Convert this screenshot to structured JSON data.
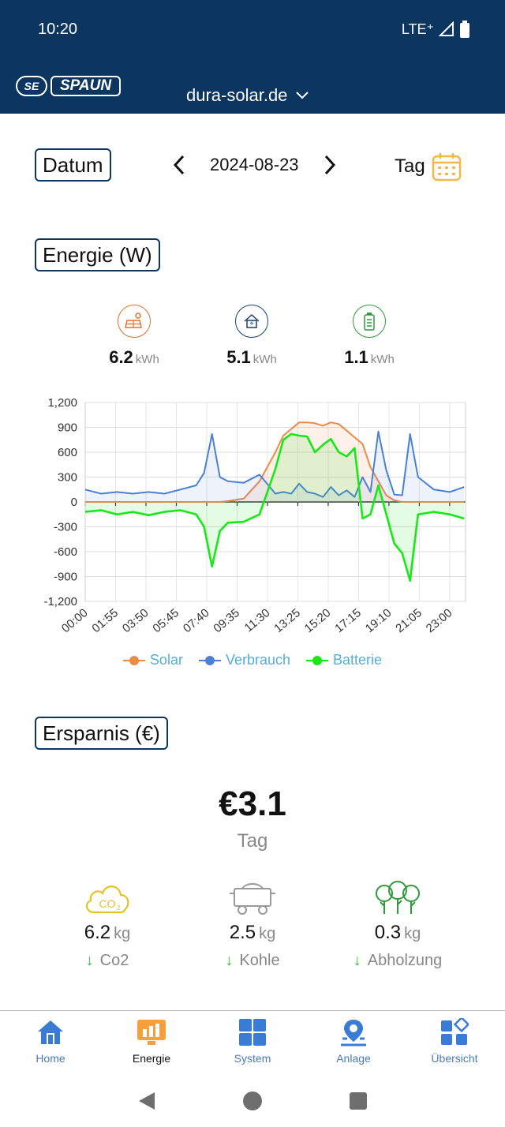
{
  "status_bar": {
    "time": "10:20",
    "network": "LTE⁺"
  },
  "header": {
    "logo_mark": "SE",
    "logo_text": "SPAUN",
    "site": "dura-solar.de"
  },
  "date_section": {
    "label": "Datum",
    "date": "2024-08-23",
    "period": "Tag"
  },
  "energy_section": {
    "label": "Energie (W)",
    "stats": [
      {
        "icon": "solar-panel-icon",
        "value": "6.2",
        "unit": "kWh",
        "color": "#e0722e"
      },
      {
        "icon": "house-consumption-icon",
        "value": "5.1",
        "unit": "kWh",
        "color": "#1d3f6b"
      },
      {
        "icon": "battery-icon",
        "value": "1.1",
        "unit": "kWh",
        "color": "#2e9a3a"
      }
    ]
  },
  "chart_data": {
    "type": "line",
    "x": [
      "00:00",
      "01:00",
      "02:00",
      "03:00",
      "04:00",
      "05:00",
      "06:00",
      "07:00",
      "07:30",
      "08:00",
      "08:30",
      "09:00",
      "10:00",
      "11:00",
      "12:00",
      "12:30",
      "13:00",
      "13:30",
      "14:00",
      "14:30",
      "15:00",
      "15:30",
      "16:00",
      "16:30",
      "17:00",
      "17:30",
      "18:00",
      "18:30",
      "19:00",
      "19:30",
      "20:00",
      "20:30",
      "21:00",
      "22:00",
      "23:00",
      "23:55"
    ],
    "series": [
      {
        "name": "Solar",
        "color": "#ee8a48",
        "fill": "rgba(238,138,72,0.12)",
        "values": [
          0,
          0,
          0,
          0,
          0,
          0,
          0,
          0,
          0,
          0,
          0,
          10,
          40,
          250,
          600,
          800,
          880,
          960,
          960,
          950,
          920,
          960,
          940,
          860,
          780,
          700,
          420,
          250,
          80,
          20,
          0,
          0,
          0,
          0,
          0,
          0
        ]
      },
      {
        "name": "Verbrauch",
        "color": "#4a80d8",
        "fill": "rgba(74,128,216,0.10)",
        "values": [
          150,
          100,
          120,
          100,
          120,
          100,
          150,
          200,
          350,
          820,
          300,
          250,
          230,
          330,
          100,
          120,
          100,
          220,
          120,
          100,
          60,
          180,
          80,
          140,
          60,
          300,
          120,
          850,
          380,
          90,
          80,
          820,
          300,
          150,
          120,
          180
        ]
      },
      {
        "name": "Batterie",
        "color": "#18e818",
        "fill": "rgba(24,232,24,0.12)",
        "values": [
          -120,
          -100,
          -150,
          -120,
          -160,
          -120,
          -100,
          -150,
          -300,
          -780,
          -350,
          -250,
          -240,
          -150,
          400,
          750,
          820,
          800,
          790,
          600,
          690,
          760,
          600,
          550,
          650,
          -200,
          -150,
          200,
          -150,
          -500,
          -620,
          -950,
          -150,
          -120,
          -150,
          -200
        ]
      }
    ],
    "ylim": [
      -1200,
      1200
    ],
    "yticks": [
      "1,200",
      "900",
      "600",
      "300",
      "0",
      "-300",
      "-600",
      "-900",
      "-1,200"
    ],
    "xticks": [
      "00:00",
      "01:55",
      "03:50",
      "05:45",
      "07:40",
      "09:35",
      "11:30",
      "13:25",
      "15:20",
      "17:15",
      "19:10",
      "21:05",
      "23:00"
    ],
    "grid": true,
    "legend": "bottom"
  },
  "savings_section": {
    "label": "Ersparnis (€)",
    "value": "€3.1",
    "period": "Tag"
  },
  "impact": [
    {
      "icon": "co2-cloud-icon",
      "value": "6.2",
      "unit": "kg",
      "label": "Co2"
    },
    {
      "icon": "coal-cart-icon",
      "value": "2.5",
      "unit": "kg",
      "label": "Kohle"
    },
    {
      "icon": "trees-icon",
      "value": "0.3",
      "unit": "kg",
      "label": "Abholzung"
    }
  ],
  "bottom_nav": [
    {
      "icon": "home-icon",
      "label": "Home",
      "active": false
    },
    {
      "icon": "energy-monitor-icon",
      "label": "Energie",
      "active": true
    },
    {
      "icon": "system-grid-icon",
      "label": "System",
      "active": false
    },
    {
      "icon": "location-pin-icon",
      "label": "Anlage",
      "active": false
    },
    {
      "icon": "overview-icon",
      "label": "Übersicht",
      "active": false
    }
  ]
}
